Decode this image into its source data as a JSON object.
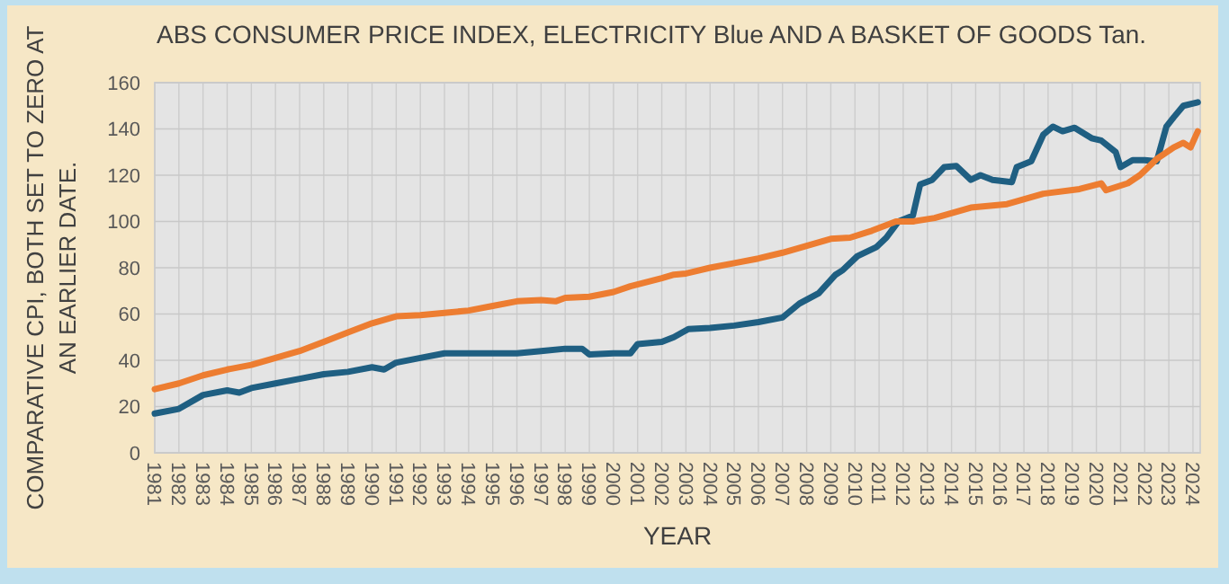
{
  "chart_data": {
    "type": "line",
    "title": "ABS CONSUMER PRICE INDEX, ELECTRICITY Blue AND A BASKET OF GOODS Tan.",
    "xlabel": "YEAR",
    "ylabel": "COMPARATIVE CPI, BOTH SET TO ZERO AT AN EARLIER DATE.",
    "xlim": [
      1981,
      2024.3
    ],
    "xticks": [
      1981,
      1982,
      1983,
      1984,
      1985,
      1986,
      1987,
      1988,
      1989,
      1990,
      1991,
      1992,
      1993,
      1994,
      1995,
      1996,
      1997,
      1998,
      1999,
      2000,
      2001,
      2002,
      2003,
      2004,
      2005,
      2006,
      2007,
      2008,
      2009,
      2010,
      2011,
      2012,
      2013,
      2014,
      2015,
      2016,
      2017,
      2018,
      2019,
      2020,
      2021,
      2022,
      2023,
      2024
    ],
    "ylim": [
      0,
      160
    ],
    "yticks": [
      0,
      20,
      40,
      60,
      80,
      100,
      120,
      140,
      160
    ],
    "grid": true,
    "line_style": "solid",
    "marker": "none",
    "series": [
      {
        "color": "#1f5f82",
        "x": [
          1981,
          1982,
          1983,
          1984,
          1984.5,
          1985,
          1986,
          1987,
          1988,
          1989,
          1990,
          1990.5,
          1991,
          1992,
          1993,
          1994,
          1995,
          1996,
          1997,
          1998,
          1998.7,
          1999,
          2000,
          2000.7,
          2001,
          2002,
          2002.5,
          2003.1,
          2004,
          2005,
          2006,
          2007,
          2007.7,
          2008.5,
          2009.2,
          2009.5,
          2010.1,
          2010.9,
          2011.3,
          2011.8,
          2012.4,
          2012.7,
          2013.2,
          2013.7,
          2014.2,
          2014.8,
          2015.2,
          2015.7,
          2016.5,
          2016.7,
          2017.3,
          2017.8,
          2018.2,
          2018.6,
          2019.1,
          2019.8,
          2020.2,
          2020.8,
          2021,
          2021.5,
          2022,
          2022.5,
          2022.9,
          2023.2,
          2023.6,
          2024.2
        ],
        "values": [
          17,
          19,
          25,
          27,
          26,
          28,
          30,
          32,
          34,
          35,
          37,
          36,
          39,
          41,
          43,
          43,
          43,
          43,
          44,
          45,
          45,
          42.5,
          43,
          43,
          47,
          48,
          50,
          53.5,
          54,
          55,
          56.5,
          58.5,
          64.5,
          69,
          77,
          79,
          85,
          89,
          93,
          100,
          102.5,
          116,
          118,
          123.5,
          124,
          118,
          120,
          118,
          117,
          123.5,
          126,
          137.5,
          141,
          139,
          140.5,
          136,
          135,
          130,
          123.5,
          126.5,
          126.5,
          126,
          141,
          145,
          150,
          151.5
        ]
      },
      {
        "color": "#ed7d31",
        "x": [
          1981,
          1982,
          1983,
          1984,
          1985,
          1986,
          1987,
          1988,
          1989,
          1990,
          1991,
          1992,
          1993,
          1994,
          1995,
          1996,
          1997,
          1997.6,
          1998,
          1999,
          2000,
          2000.7,
          2002,
          2002.5,
          2003,
          2004,
          2005,
          2006,
          2007,
          2008,
          2009,
          2009.8,
          2010.7,
          2011.7,
          2012.4,
          2013.3,
          2014.8,
          2016.3,
          2017.8,
          2019.3,
          2020.2,
          2020.4,
          2021.3,
          2021.8,
          2022.5,
          2023.2,
          2023.6,
          2023.9,
          2024.2
        ],
        "values": [
          27.5,
          30,
          33.5,
          36,
          38,
          41,
          44,
          48,
          52,
          56,
          59,
          59.5,
          60.5,
          61.5,
          63.5,
          65.5,
          66,
          65.5,
          67,
          67.5,
          69.5,
          72,
          75.5,
          77,
          77.5,
          80,
          82,
          84,
          86.5,
          89.5,
          92.5,
          93,
          96,
          100,
          100,
          101.5,
          106,
          107.5,
          112,
          114,
          116.5,
          113.5,
          116.5,
          120,
          127,
          132,
          134,
          132,
          139
        ]
      }
    ]
  }
}
